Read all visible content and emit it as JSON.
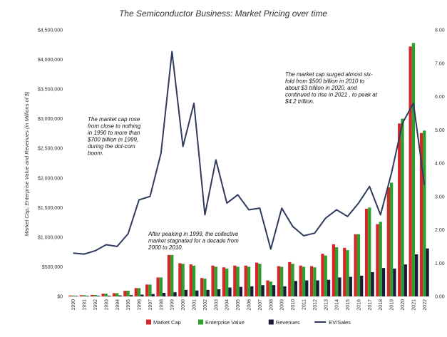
{
  "chart_data": {
    "type": "bar",
    "title": "The Semiconductor Business: Market Pricing over time",
    "ylabel": "Market Cap, Enterprise Value and Revenues (in Millions of $)",
    "y2label": "",
    "ylim": [
      0,
      4500000
    ],
    "y2lim": [
      0,
      8
    ],
    "y_ticks": [
      "$0",
      "$500,000",
      "$1,000,000",
      "$1,500,000",
      "$2,000,000",
      "$2,500,000",
      "$3,000,000",
      "$3,500,000",
      "$4,000,000",
      "$4,500,000"
    ],
    "y2_ticks": [
      "0.00",
      "1.00",
      "2.00",
      "3.00",
      "4.00",
      "5.00",
      "6.00",
      "7.00",
      "8.00"
    ],
    "categories": [
      "1990",
      "1991",
      "1992",
      "1993",
      "1994",
      "1995",
      "1996",
      "1997",
      "1998",
      "1999",
      "2000",
      "2001",
      "2002",
      "2003",
      "2004",
      "2005",
      "2006",
      "2007",
      "2008",
      "2009",
      "2010",
      "2011",
      "2012",
      "2013",
      "2014",
      "2015",
      "2016",
      "2017",
      "2018",
      "2019",
      "2020",
      "2021",
      "2022"
    ],
    "series": [
      {
        "name": "Market Cap",
        "color": "#d62728",
        "axis": "left",
        "values": [
          15000,
          20000,
          25000,
          45000,
          55000,
          95000,
          140000,
          200000,
          320000,
          700000,
          560000,
          540000,
          310000,
          520000,
          490000,
          520000,
          520000,
          570000,
          270000,
          510000,
          580000,
          520000,
          510000,
          720000,
          880000,
          820000,
          1050000,
          1480000,
          1220000,
          1840000,
          2920000,
          4220000,
          2760000
        ]
      },
      {
        "name": "Enterprise Value",
        "color": "#2ca02c",
        "axis": "left",
        "values": [
          15000,
          20000,
          25000,
          45000,
          55000,
          95000,
          140000,
          200000,
          320000,
          700000,
          550000,
          520000,
          300000,
          500000,
          470000,
          500000,
          500000,
          550000,
          250000,
          500000,
          550000,
          500000,
          490000,
          690000,
          830000,
          780000,
          1050000,
          1500000,
          1260000,
          1920000,
          3000000,
          4280000,
          2800000
        ]
      },
      {
        "name": "Revenues",
        "color": "#1a1a3a",
        "axis": "left",
        "values": [
          8000,
          9000,
          10000,
          12000,
          16000,
          22000,
          30000,
          40000,
          60000,
          70000,
          110000,
          100000,
          110000,
          120000,
          150000,
          160000,
          170000,
          190000,
          190000,
          170000,
          260000,
          270000,
          270000,
          280000,
          320000,
          330000,
          350000,
          410000,
          480000,
          470000,
          540000,
          710000,
          810000
        ]
      },
      {
        "name": "EV/Sales",
        "color": "#2e3b5e",
        "axis": "right",
        "type": "line",
        "values": [
          1.3,
          1.27,
          1.37,
          1.55,
          1.5,
          1.88,
          2.9,
          3.0,
          4.3,
          7.35,
          4.5,
          5.8,
          2.45,
          4.1,
          2.8,
          3.05,
          2.6,
          2.65,
          1.42,
          2.65,
          2.1,
          1.82,
          1.9,
          2.35,
          2.6,
          2.4,
          2.8,
          3.3,
          2.45,
          3.7,
          5.2,
          5.8,
          3.35
        ]
      }
    ],
    "annotations": [
      [
        "The market cap rose",
        "from close to nothing",
        "in 1990 to more than",
        "$700 billion in 1999,",
        "during the dot-com",
        "boom."
      ],
      [
        "After peaking in 1999, the collective",
        "market stagnated for a decade from",
        "2000 to 2010."
      ],
      [
        "The market cap surged almost six-",
        "fold from $500 billion in 2010 to",
        "about $3 trillion in 2020, and",
        "continued to rise in 2021 , to peak at",
        "$4.2 trillion."
      ]
    ],
    "legend_position": "bottom",
    "grid": false
  }
}
